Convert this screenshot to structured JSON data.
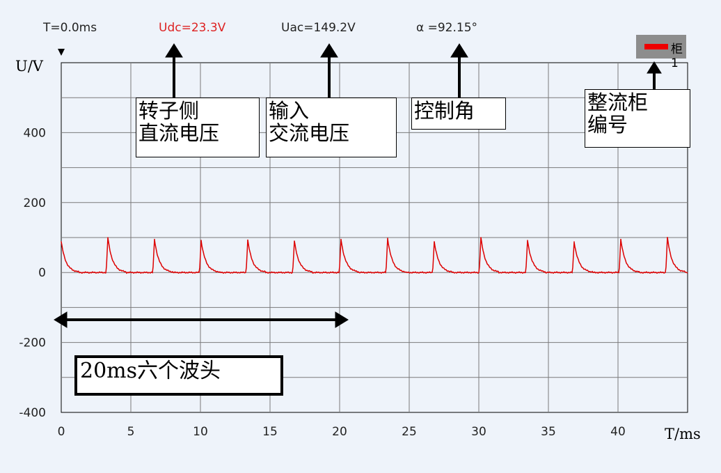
{
  "readouts": {
    "time": "T=0.0ms",
    "udc": "Udc=23.3V",
    "uac": "Uac=149.2V",
    "alpha": "α =92.15°"
  },
  "colors": {
    "udc_readout": "#dd2222",
    "trace": "#dd0000",
    "legend_bg": "#8d8d8d",
    "background": "#eef3fa",
    "grid": "#7a7a7a"
  },
  "legend": {
    "label": "柜1"
  },
  "annotations": {
    "rotor_dc": [
      "转子侧",
      "直流电压"
    ],
    "input_ac": [
      "输入",
      "交流电压"
    ],
    "control_angle": "控制角",
    "cabinet_no": [
      "整流柜",
      "编号"
    ],
    "six_peaks": "20ms六个波头"
  },
  "chart_data": {
    "type": "line",
    "xlabel": "T/ms",
    "ylabel": "U/V",
    "xlim": [
      0,
      45
    ],
    "ylim": [
      -400,
      600
    ],
    "x_ticks": [
      0,
      5,
      10,
      15,
      20,
      25,
      30,
      35,
      40
    ],
    "y_ticks": [
      -400,
      -200,
      0,
      200,
      400
    ],
    "grid": true,
    "legend_position": "top-right",
    "series": [
      {
        "name": "柜1",
        "color": "#dd0000",
        "peaks": [
          {
            "t": 0.0,
            "v": 88
          },
          {
            "t": 3.35,
            "v": 100
          },
          {
            "t": 6.7,
            "v": 95
          },
          {
            "t": 10.05,
            "v": 92
          },
          {
            "t": 13.4,
            "v": 93
          },
          {
            "t": 16.75,
            "v": 90
          },
          {
            "t": 20.1,
            "v": 95
          },
          {
            "t": 23.45,
            "v": 98
          },
          {
            "t": 26.8,
            "v": 88
          },
          {
            "t": 30.15,
            "v": 100
          },
          {
            "t": 33.5,
            "v": 92
          },
          {
            "t": 36.85,
            "v": 88
          },
          {
            "t": 40.2,
            "v": 95
          },
          {
            "t": 43.55,
            "v": 100
          }
        ],
        "baseline": 0
      }
    ]
  }
}
